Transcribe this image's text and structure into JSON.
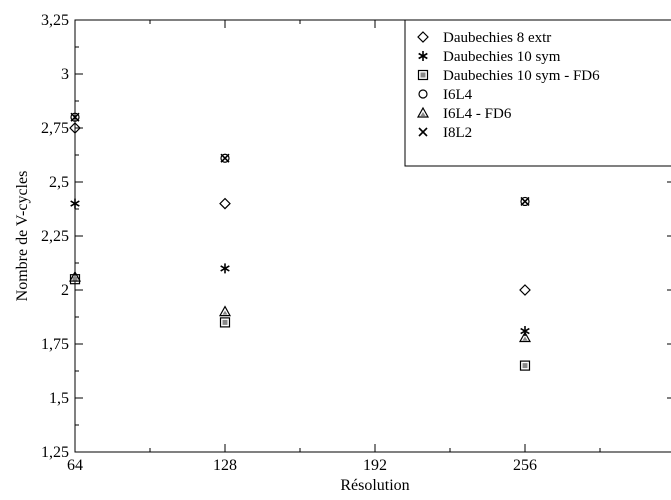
{
  "chart_data": {
    "type": "scatter",
    "title": "",
    "xlabel": "Résolution",
    "ylabel": "Nombre de V-cycles",
    "xlim": [
      64,
      320
    ],
    "ylim": [
      1.25,
      3.25
    ],
    "x_ticks": [
      64,
      128,
      192,
      256
    ],
    "x_tick_labels": [
      "64",
      "128",
      "192",
      "256"
    ],
    "y_ticks": [
      1.25,
      1.5,
      1.75,
      2,
      2.25,
      2.5,
      2.75,
      3,
      3.25
    ],
    "y_tick_labels": [
      "1,25",
      "1,5",
      "1,75",
      "2",
      "2,25",
      "2,5",
      "2,75",
      "3",
      "3,25"
    ],
    "grid": false,
    "legend_position": "top-right",
    "series": [
      {
        "name": "Daubechies 8 extr",
        "marker": "diamond",
        "x": [
          64,
          128,
          256
        ],
        "y": [
          2.75,
          2.4,
          2.0
        ]
      },
      {
        "name": "Daubechies 10 sym",
        "marker": "asterisk",
        "x": [
          64,
          128,
          256
        ],
        "y": [
          2.4,
          2.1,
          1.81
        ]
      },
      {
        "name": "Daubechies 10 sym - FD6",
        "marker": "square",
        "x": [
          64,
          128,
          256
        ],
        "y": [
          2.05,
          1.85,
          1.65
        ]
      },
      {
        "name": "I6L4",
        "marker": "circle",
        "x": [
          64,
          128,
          256
        ],
        "y": [
          2.8,
          2.61,
          2.41
        ]
      },
      {
        "name": "I6L4 - FD6",
        "marker": "triangle",
        "x": [
          64,
          128,
          256
        ],
        "y": [
          2.06,
          1.9,
          1.78
        ]
      },
      {
        "name": "I8L2",
        "marker": "cross",
        "x": [
          64,
          128,
          256
        ],
        "y": [
          2.8,
          2.61,
          2.41
        ]
      }
    ]
  }
}
